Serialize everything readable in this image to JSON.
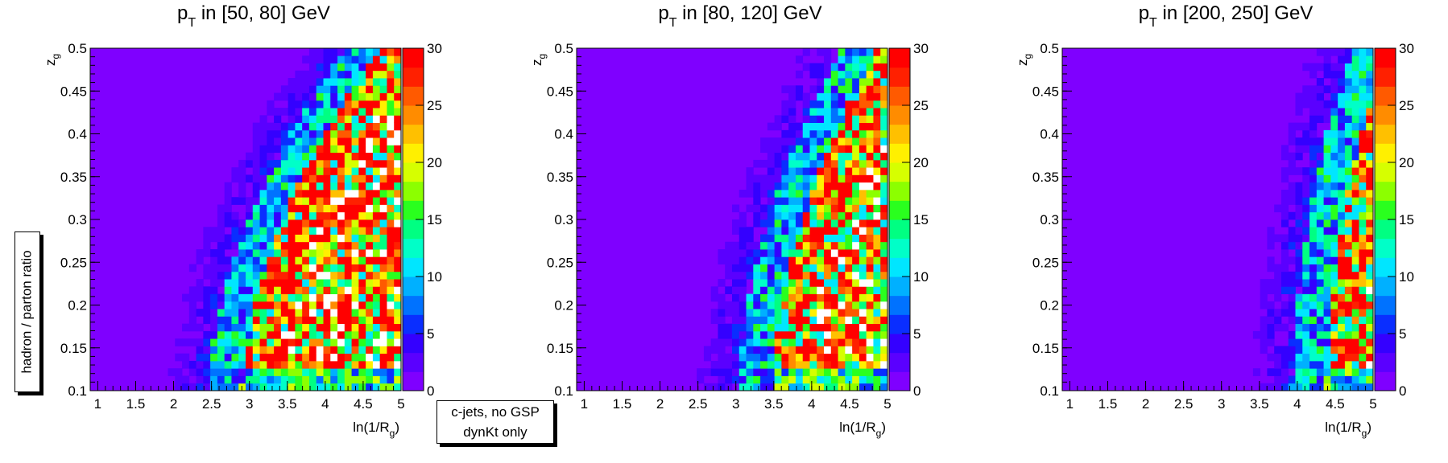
{
  "side_label": "hadron / parton ratio",
  "note": {
    "line1": "c-jets, no GSP",
    "line2": "dynKt only"
  },
  "palette": [
    "#7f00ff",
    "#5a00ff",
    "#3400ff",
    "#0a2eff",
    "#0072ff",
    "#00b0ff",
    "#00e6ff",
    "#00ffc8",
    "#00ff82",
    "#2aff1e",
    "#8cff00",
    "#d6ff00",
    "#fff000",
    "#ffc000",
    "#ff8c00",
    "#ff5a00",
    "#ff2000",
    "#ff0000"
  ],
  "chart_data": [
    {
      "type": "heatmap",
      "title_main": "p",
      "title_sub": "T",
      "title_rest": " in [50, 80] GeV",
      "xlabel_main": "ln(1/R",
      "xlabel_sub": "g",
      "xlabel_end": ")",
      "ylabel_main": "z",
      "ylabel_sub": "g",
      "xlim": [
        0.9,
        5.0
      ],
      "ylim": [
        0.1,
        0.5
      ],
      "xticks": [
        "1",
        "1.5",
        "2",
        "2.5",
        "3",
        "3.5",
        "4",
        "4.5",
        "5"
      ],
      "yticks": [
        "0.1",
        "0.15",
        "0.2",
        "0.25",
        "0.3",
        "0.35",
        "0.4",
        "0.45",
        "0.5"
      ],
      "zlim": [
        0,
        30
      ],
      "zticks": [
        "0",
        "5",
        "10",
        "15",
        "20",
        "25",
        "30"
      ],
      "ridge_x": 3.05,
      "ridge_slope": 1.2,
      "ridge_curve": 18
    },
    {
      "type": "heatmap",
      "title_main": "p",
      "title_sub": "T",
      "title_rest": " in [80, 120] GeV",
      "xlabel_main": "ln(1/R",
      "xlabel_sub": "g",
      "xlabel_end": ")",
      "ylabel_main": "z",
      "ylabel_sub": "g",
      "xlim": [
        0.9,
        5.0
      ],
      "ylim": [
        0.1,
        0.5
      ],
      "xticks": [
        "1",
        "1.5",
        "2",
        "2.5",
        "3",
        "3.5",
        "4",
        "4.5",
        "5"
      ],
      "yticks": [
        "0.1",
        "0.15",
        "0.2",
        "0.25",
        "0.3",
        "0.35",
        "0.4",
        "0.45",
        "0.5"
      ],
      "zlim": [
        0,
        30
      ],
      "zticks": [
        "0",
        "5",
        "10",
        "15",
        "20",
        "25",
        "30"
      ],
      "ridge_x": 3.55,
      "ridge_slope": 0.9,
      "ridge_curve": 14
    },
    {
      "type": "heatmap",
      "title_main": "p",
      "title_sub": "T",
      "title_rest": " in [200, 250] GeV",
      "xlabel_main": "ln(1/R",
      "xlabel_sub": "g",
      "xlabel_end": ")",
      "ylabel_main": "z",
      "ylabel_sub": "g",
      "xlim": [
        0.9,
        5.0
      ],
      "ylim": [
        0.1,
        0.5
      ],
      "xticks": [
        "1",
        "1.5",
        "2",
        "2.5",
        "3",
        "3.5",
        "4",
        "4.5",
        "5"
      ],
      "yticks": [
        "0.1",
        "0.15",
        "0.2",
        "0.25",
        "0.3",
        "0.35",
        "0.4",
        "0.45",
        "0.5"
      ],
      "zlim": [
        0,
        30
      ],
      "zticks": [
        "0",
        "5",
        "10",
        "15",
        "20",
        "25",
        "30"
      ],
      "ridge_x": 4.35,
      "ridge_slope": 0.5,
      "ridge_curve": 8
    }
  ]
}
